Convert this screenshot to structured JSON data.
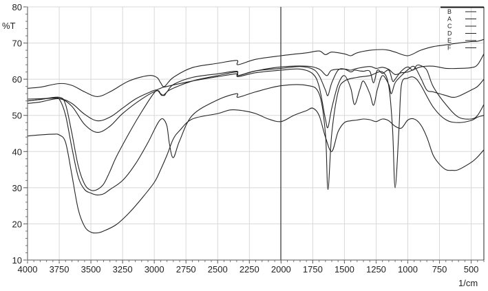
{
  "chart_data": {
    "type": "line",
    "title": "",
    "xlabel": "1/cm",
    "ylabel": "%T",
    "xlim": [
      4000,
      400
    ],
    "ylim": [
      10,
      80
    ],
    "x_ticks": [
      4000,
      3750,
      3500,
      3250,
      3000,
      2750,
      2500,
      2250,
      2000,
      1750,
      1500,
      1250,
      1000,
      750,
      500
    ],
    "y_ticks": [
      10,
      20,
      30,
      40,
      50,
      60,
      70,
      80
    ],
    "grid": true,
    "legend_position": "top-right",
    "legend": [
      "B",
      "A",
      "C",
      "D",
      "E",
      "F"
    ],
    "series": [
      {
        "name": "A",
        "x": [
          4000,
          3900,
          3750,
          3650,
          3550,
          3450,
          3350,
          3200,
          3050,
          2980,
          2950,
          2920,
          2850,
          2700,
          2500,
          2350,
          2340,
          2200,
          2000,
          1800,
          1700,
          1650,
          1600,
          1500,
          1450,
          1400,
          1300,
          1200,
          1150,
          1100,
          1000,
          900,
          800,
          700,
          600,
          500,
          450,
          400
        ],
        "y": [
          57.5,
          57.8,
          58.8,
          58.3,
          56.5,
          55.2,
          56.5,
          59.5,
          61,
          60.5,
          59,
          58,
          60.5,
          63.2,
          64.4,
          65.2,
          64,
          65.5,
          66.5,
          67.3,
          67.8,
          66.8,
          67.5,
          67,
          66.5,
          67.3,
          68,
          68.2,
          68,
          67.5,
          66.5,
          68,
          69,
          69.5,
          70,
          70.4,
          70.5,
          71
        ]
      },
      {
        "name": "B",
        "x": [
          4000,
          3900,
          3750,
          3650,
          3550,
          3450,
          3350,
          3250,
          3150,
          3050,
          2980,
          2940,
          2900,
          2850,
          2700,
          2500,
          2350,
          2340,
          2200,
          2000,
          1800,
          1700,
          1640,
          1600,
          1500,
          1450,
          1400,
          1300,
          1250,
          1200,
          1150,
          1100,
          1050,
          1000,
          900,
          800,
          700,
          600,
          500,
          450,
          400
        ],
        "y": [
          54.5,
          54.6,
          54.7,
          53.3,
          50.3,
          48.5,
          49.5,
          52,
          54.5,
          56.2,
          57,
          55.5,
          56.5,
          58.5,
          60.5,
          61.5,
          62.2,
          61,
          62.3,
          63.4,
          63.6,
          62.8,
          61,
          62.5,
          62.8,
          62.5,
          63,
          63.5,
          63,
          63.3,
          62.7,
          61.3,
          61.8,
          62,
          63.4,
          63.6,
          63,
          63,
          63.2,
          64,
          67
        ]
      },
      {
        "name": "C",
        "x": [
          4000,
          3900,
          3750,
          3650,
          3550,
          3450,
          3350,
          3250,
          3100,
          2980,
          2950,
          2920,
          2880,
          2700,
          2500,
          2350,
          2340,
          2200,
          2000,
          1850,
          1750,
          1700,
          1650,
          1630,
          1600,
          1550,
          1500,
          1450,
          1420,
          1380,
          1350,
          1300,
          1270,
          1240,
          1200,
          1150,
          1120,
          1100,
          1050,
          1000,
          960,
          930,
          900,
          850,
          800,
          700,
          600,
          500,
          450,
          400
        ],
        "y": [
          53.3,
          53.7,
          54.6,
          52.5,
          47.5,
          45.3,
          47,
          50.5,
          54.5,
          56.8,
          56,
          55.5,
          57,
          59.5,
          61,
          62,
          61,
          62.3,
          63,
          63.5,
          62.8,
          61,
          57,
          55.5,
          59,
          62.5,
          62.8,
          62,
          62.5,
          62.3,
          62.2,
          62.2,
          59,
          62.5,
          61.6,
          62.5,
          59.5,
          60,
          62.3,
          63.4,
          62.5,
          63.8,
          63.8,
          62.5,
          58,
          53,
          49.5,
          49,
          50,
          53
        ]
      },
      {
        "name": "D",
        "x": [
          4000,
          3900,
          3750,
          3700,
          3650,
          3600,
          3550,
          3500,
          3450,
          3400,
          3350,
          3300,
          3200,
          3100,
          3000,
          2950,
          2900,
          2700,
          2500,
          2350,
          2340,
          2200,
          2000,
          1850,
          1750,
          1700,
          1650,
          1630,
          1600,
          1550,
          1500,
          1450,
          1420,
          1380,
          1350,
          1300,
          1270,
          1240,
          1200,
          1150,
          1130,
          1100,
          1050,
          1000,
          950,
          900,
          850,
          800,
          700,
          650,
          600,
          500,
          450,
          400
        ],
        "y": [
          54,
          54.4,
          55,
          53,
          45,
          36,
          31,
          29.3,
          29.5,
          31,
          34.5,
          38.5,
          45,
          51,
          56.3,
          57.5,
          58,
          59.5,
          60.7,
          61.5,
          60.7,
          61.8,
          62.5,
          62.8,
          61.5,
          58,
          49,
          46.7,
          52,
          58.5,
          61,
          57.5,
          53,
          57,
          59.5,
          56,
          52.8,
          57.2,
          61,
          58.5,
          56,
          59,
          61,
          62.6,
          63.5,
          60.5,
          57,
          56.5,
          55.5,
          55,
          55.3,
          57,
          58,
          60
        ]
      },
      {
        "name": "E",
        "x": [
          4000,
          3900,
          3800,
          3750,
          3700,
          3650,
          3600,
          3550,
          3500,
          3450,
          3400,
          3350,
          3250,
          3150,
          3050,
          3000,
          2960,
          2930,
          2900,
          2880,
          2850,
          2800,
          2700,
          2500,
          2350,
          2340,
          2200,
          2000,
          1800,
          1700,
          1650,
          1630,
          1600,
          1550,
          1500,
          1400,
          1300,
          1200,
          1150,
          1120,
          1100,
          1070,
          1050,
          1000,
          950,
          900,
          800,
          700,
          600,
          500,
          450,
          400
        ],
        "y": [
          54,
          54.4,
          54.8,
          54.5,
          50,
          41,
          33,
          29.5,
          28.5,
          28,
          28.3,
          29.5,
          32,
          36.5,
          42.5,
          46,
          48.5,
          49,
          47,
          42,
          38.3,
          43,
          50,
          54.3,
          56,
          55,
          56.5,
          58.2,
          58.3,
          56,
          45,
          29.5,
          45,
          56.5,
          59.5,
          60.5,
          61,
          62,
          58,
          46,
          30,
          46,
          58.5,
          60.3,
          60.5,
          58.5,
          52.3,
          48.8,
          48,
          48.6,
          49.5,
          50
        ]
      },
      {
        "name": "F",
        "x": [
          4000,
          3900,
          3800,
          3750,
          3700,
          3650,
          3600,
          3550,
          3500,
          3450,
          3400,
          3300,
          3200,
          3100,
          3000,
          2950,
          2900,
          2850,
          2800,
          2700,
          2500,
          2400,
          2300,
          2200,
          2100,
          2000,
          1900,
          1800,
          1750,
          1700,
          1650,
          1600,
          1550,
          1500,
          1450,
          1400,
          1350,
          1300,
          1250,
          1200,
          1150,
          1100,
          1050,
          1000,
          950,
          900,
          850,
          800,
          750,
          700,
          650,
          600,
          500,
          450,
          400
        ],
        "y": [
          44.3,
          44.6,
          44.8,
          44.6,
          42.5,
          33.5,
          24,
          19.3,
          17.7,
          17.5,
          18,
          19.8,
          23,
          27,
          31.5,
          35,
          39,
          43.5,
          45.8,
          49,
          50.5,
          51.5,
          51.3,
          50.5,
          49,
          48.3,
          50,
          51.3,
          52,
          50,
          44,
          40,
          45.5,
          48,
          48.5,
          48.7,
          49,
          48.8,
          48.3,
          49,
          48.5,
          47,
          46.5,
          48.7,
          49,
          47.5,
          44,
          39,
          36.5,
          35,
          34.8,
          35,
          37,
          38.5,
          40.5
        ]
      }
    ]
  },
  "legend_items": [
    {
      "label": "B"
    },
    {
      "label": "A"
    },
    {
      "label": "C"
    },
    {
      "label": "D"
    },
    {
      "label": "E"
    },
    {
      "label": "F"
    }
  ],
  "axes": {
    "y_unit": "%T",
    "x_unit": "1/cm"
  }
}
